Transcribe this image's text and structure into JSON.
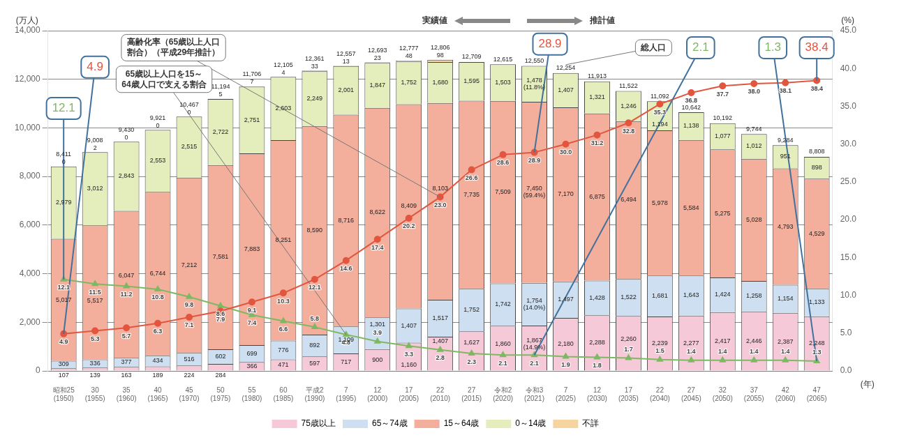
{
  "chart_data": {
    "type": "bar",
    "stacked": true,
    "ylabel": "(万人)",
    "y2label": "(%)",
    "xlabel": "(年)",
    "categories": [
      "昭和25\n(1950)",
      "30\n(1955)",
      "35\n(1960)",
      "40\n(1965)",
      "45\n(1970)",
      "50\n(1975)",
      "55\n(1980)",
      "60\n(1985)",
      "平成2\n(1990)",
      "7\n(1995)",
      "12\n(2000)",
      "17\n(2005)",
      "22\n(2010)",
      "27\n(2015)",
      "令和2\n(2020)",
      "令和3\n(2021)",
      "7\n(2025)",
      "12\n(2030)",
      "17\n(2035)",
      "22\n(2040)",
      "27\n(2045)",
      "32\n(2050)",
      "37\n(2055)",
      "42\n(2060)",
      "47\n(2065)"
    ],
    "series": [
      {
        "name": "75歳以上",
        "color": "#f5c9d8",
        "values": [
          107,
          139,
          163,
          189,
          224,
          284,
          366,
          471,
          597,
          717,
          900,
          1160,
          1407,
          1627,
          1860,
          1867,
          2180,
          2288,
          2260,
          2239,
          2277,
          2417,
          2446,
          2387,
          2248
        ],
        "value_labels": [
          "107",
          "139",
          "163",
          "189",
          "224",
          "284",
          "366",
          "471",
          "597",
          "717",
          "900",
          "1,160",
          "1,407",
          "1,627",
          "1,860",
          "1,867\n(14.9%)",
          "2,180",
          "2,288",
          "2,260",
          "2,239",
          "2,277",
          "2,417",
          "2,446",
          "2,387",
          "2,248"
        ]
      },
      {
        "name": "65～74歳",
        "color": "#cddff0",
        "values": [
          309,
          336,
          377,
          434,
          516,
          602,
          699,
          776,
          892,
          1109,
          1301,
          1407,
          1517,
          1752,
          1742,
          1754,
          1497,
          1428,
          1522,
          1681,
          1643,
          1424,
          1258,
          1154,
          1133
        ],
        "value_labels": [
          "309",
          "336",
          "377",
          "434",
          "516",
          "602",
          "699",
          "776",
          "892",
          "1,109",
          "1,301",
          "1,407",
          "1,517",
          "1,752",
          "1,742",
          "1,754\n(14.0%)",
          "1,497",
          "1,428",
          "1,522",
          "1,681",
          "1,643",
          "1,424",
          "1,258",
          "1,154",
          "1,133"
        ]
      },
      {
        "name": "15～64歳",
        "color": "#f3ae9c",
        "values": [
          5017,
          5517,
          6047,
          6744,
          7212,
          7581,
          7883,
          8251,
          8590,
          8716,
          8622,
          8409,
          8103,
          7735,
          7509,
          7450,
          7170,
          6875,
          6494,
          5978,
          5584,
          5275,
          5028,
          4793,
          4529
        ],
        "value_labels": [
          "5,017",
          "5,517",
          "6,047",
          "6,744",
          "7,212",
          "7,581",
          "7,883",
          "8,251",
          "8,590",
          "8,716",
          "8,622",
          "8,409",
          "8,103",
          "7,735",
          "7,509",
          "7,450\n(59.4%)",
          "7,170",
          "6,875",
          "6,494",
          "5,978",
          "5,584",
          "5,275",
          "5,028",
          "4,793",
          "4,529"
        ]
      },
      {
        "name": "0～14歳",
        "color": "#e4edbc",
        "values": [
          2979,
          3012,
          2843,
          2553,
          2515,
          2722,
          2751,
          2603,
          2249,
          2001,
          1847,
          1752,
          1680,
          1595,
          1503,
          1478,
          1407,
          1321,
          1246,
          1194,
          1138,
          1077,
          1012,
          951,
          898
        ],
        "value_labels": [
          "2,979",
          "3,012",
          "2,843",
          "2,553",
          "2,515",
          "2,722",
          "2,751",
          "2,603",
          "2,249",
          "2,001",
          "1,847",
          "1,752",
          "1,680",
          "1,595",
          "1,503",
          "1,478\n(11.8%)",
          "1,407",
          "1,321",
          "1,246",
          "1,194",
          "1,138",
          "1,077",
          "1,012",
          "951",
          "898"
        ]
      },
      {
        "name": "不詳",
        "color": "#f7d49e",
        "values": [
          0,
          2,
          0,
          0,
          0,
          5,
          7,
          4,
          33,
          13,
          23,
          48,
          98,
          null,
          null,
          null,
          null,
          null,
          null,
          null,
          null,
          null,
          null,
          null,
          null
        ],
        "value_labels": [
          "0",
          "2",
          "0",
          "0",
          "0",
          "5",
          "7",
          "4",
          "33",
          "13",
          "23",
          "48",
          "98",
          null,
          null,
          null,
          null,
          null,
          null,
          null,
          null,
          null,
          null,
          null,
          null
        ]
      },
      {
        "type": "line",
        "axis": "y2",
        "color": "#e2553f",
        "marker": "circle",
        "values": [
          4.9,
          5.3,
          5.7,
          6.3,
          7.1,
          7.9,
          9.1,
          10.3,
          12.1,
          14.6,
          17.4,
          20.2,
          23.0,
          26.6,
          28.6,
          28.9,
          30.0,
          31.2,
          32.8,
          35.3,
          36.8,
          37.7,
          38.0,
          38.1,
          38.4
        ],
        "value_labels": [
          "4.9",
          "5.3",
          "5.7",
          "6.3",
          "7.1",
          "7.9",
          "9.1",
          "10.3",
          "12.1",
          "14.6",
          "17.4",
          "20.2",
          "23.0",
          "26.6",
          "28.6",
          "28.9",
          "30.0",
          "31.2",
          "32.8",
          "35.3",
          "36.8",
          "37.7",
          "38.0",
          "38.1",
          "38.4"
        ]
      },
      {
        "type": "line",
        "axis": "y2",
        "color": "#7fb862",
        "marker": "triangle",
        "values": [
          12.1,
          11.5,
          11.2,
          10.8,
          9.8,
          8.6,
          7.4,
          6.6,
          5.8,
          4.8,
          3.9,
          3.3,
          2.8,
          2.3,
          2.1,
          2.1,
          1.9,
          1.8,
          1.7,
          1.5,
          1.4,
          1.4,
          1.4,
          1.4,
          1.3
        ],
        "value_labels": [
          "12.1",
          "11.5",
          "11.2",
          "10.8",
          "9.8",
          "8.6",
          "7.4",
          "6.6",
          "5.8",
          "4.8",
          "3.9",
          "3.3",
          "2.8",
          "2.3",
          "2.1",
          "2.1",
          "1.9",
          "1.8",
          "1.7",
          "1.5",
          "1.4",
          "1.4",
          "1.4",
          "1.4",
          "1.3"
        ]
      }
    ],
    "totals": [
      "8,411",
      "9,008",
      "9,430",
      "9,921",
      "10,467",
      "11,194",
      "11,706",
      "12,105",
      "12,361",
      "12,557",
      "12,693",
      "12,777",
      "12,806",
      "12,709",
      "12,615",
      "12,550",
      "12,254",
      "11,913",
      "11,522",
      "11,092",
      "10,642",
      "10,192",
      "9,744",
      "9,284",
      "8,808"
    ],
    "ylim": [
      0,
      14000
    ],
    "yticks": [
      0,
      {
        "value": 2000,
        "label": "2,000"
      },
      {
        "value": 4000,
        "label": "4,000"
      },
      {
        "value": 6000,
        "label": "6,000"
      },
      {
        "value": 8000,
        "label": "8,000"
      },
      {
        "value": 10000,
        "label": "10,000"
      },
      {
        "value": 12000,
        "label": "12,000"
      },
      {
        "value": 14000,
        "label": "14,000"
      }
    ],
    "y2lim": [
      0,
      45
    ],
    "y2ticks": [
      {
        "value": 0,
        "label": "0.0"
      },
      {
        "value": 5,
        "label": "5.0"
      },
      {
        "value": 10,
        "label": "10.0"
      },
      {
        "value": 15,
        "label": "15.0"
      },
      {
        "value": 20,
        "label": "20.0"
      },
      {
        "value": 25,
        "label": "25.0"
      },
      {
        "value": 30,
        "label": "30.0"
      },
      {
        "value": 35,
        "label": "35.0"
      },
      {
        "value": 40,
        "label": "40.0"
      },
      {
        "value": 45,
        "label": "45.0"
      }
    ],
    "grid": "y",
    "legend": "bottom",
    "annotations": [
      "実績値",
      "推計値",
      {
        "text": "総人口",
        "x": "7\n(2025)"
      },
      {
        "text": "高齢化率（65歳以上人口割合）（平成29年推計）",
        "x": "22\n(2010)"
      },
      {
        "text": "65歳以上人口を15～64歳人口で支える割合",
        "x": "7\n(1995)"
      },
      {
        "text": "12.1",
        "x": "昭和25\n(1950)"
      },
      {
        "text": "4.9",
        "x": "昭和25\n(1950)"
      },
      {
        "text": "28.9",
        "x": "令和3\n(2021)"
      },
      {
        "text": "2.1",
        "x": "令和3\n(2021)"
      },
      {
        "text": "38.4",
        "x": "47\n(2065)"
      },
      {
        "text": "1.3",
        "x": "47\n(2065)"
      }
    ]
  }
}
